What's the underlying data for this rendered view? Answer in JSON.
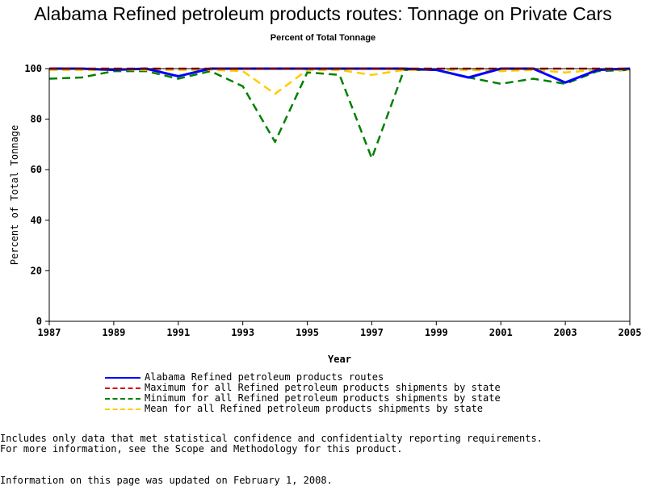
{
  "chart_data": {
    "type": "line",
    "title": "Alabama Refined petroleum products routes: Tonnage on Private Cars",
    "subtitle": "Percent of Total Tonnage",
    "xlabel": "Year",
    "ylabel": "Percent of Total Tonnage",
    "xlim": [
      1987,
      2005
    ],
    "ylim": [
      0,
      100
    ],
    "x_ticks": [
      "1987",
      "1989",
      "1991",
      "1993",
      "1995",
      "1997",
      "1999",
      "2001",
      "2003",
      "2005"
    ],
    "y_ticks": [
      "0",
      "20",
      "40",
      "60",
      "80",
      "100"
    ],
    "x": [
      1987,
      1988,
      1989,
      1990,
      1991,
      1992,
      1993,
      1994,
      1995,
      1996,
      1997,
      1998,
      1999,
      2000,
      2001,
      2002,
      2003,
      2004,
      2005
    ],
    "series": [
      {
        "name": "Alabama Refined petroleum products routes",
        "color": "#0000ff",
        "dash": "solid",
        "values": [
          100,
          100,
          99.5,
          100,
          97,
          100,
          100,
          100,
          100,
          100,
          100,
          100,
          99.5,
          96.5,
          100,
          100,
          94.5,
          99.5,
          100
        ]
      },
      {
        "name": "Maximum for all Refined petroleum products shipments by state",
        "color": "#cc0000",
        "dash": "dashed",
        "values": [
          100,
          100,
          100,
          100,
          100,
          100,
          100,
          100,
          100,
          100,
          100,
          100,
          100,
          100,
          100,
          100,
          100,
          100,
          100
        ]
      },
      {
        "name": "Minimum for all Refined petroleum products shipments by state",
        "color": "#008000",
        "dash": "dashed",
        "values": [
          96,
          96.5,
          99,
          99,
          96,
          99,
          93,
          71,
          98.5,
          97.5,
          64.5,
          99.5,
          99.5,
          96.5,
          94,
          96,
          94,
          99,
          99.5
        ]
      },
      {
        "name": "Mean for all Refined petroleum products shipments by state",
        "color": "#ffcc00",
        "dash": "dashed",
        "values": [
          99.5,
          99.5,
          99.5,
          99.5,
          99.5,
          99.5,
          99,
          90,
          99.5,
          99.5,
          97.5,
          99.5,
          99.5,
          99.5,
          99,
          99.5,
          98.5,
          99.5,
          99.5
        ]
      }
    ],
    "legend_position": "bottom",
    "grid": false
  },
  "footnotes": {
    "line1": "Includes only data that met statistical confidence and confidentialty reporting requirements.",
    "line2": "For more information, see the Scope and Methodology for this product.",
    "updated": "Information on this page was updated on February 1, 2008."
  }
}
